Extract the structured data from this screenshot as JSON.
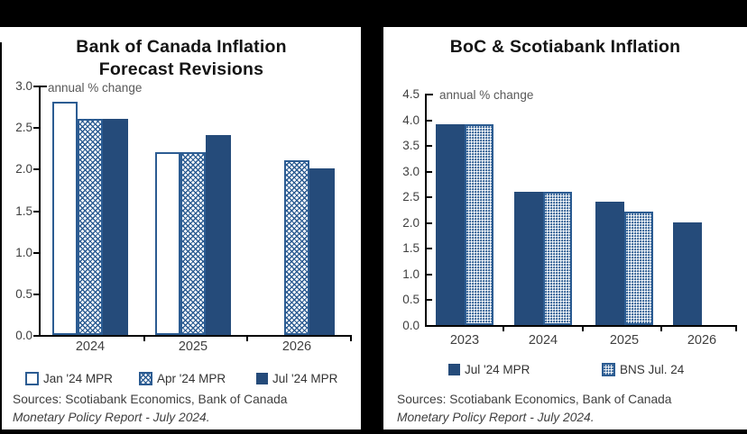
{
  "colors": {
    "bar_solid": "#254B7A",
    "bar_outline": "#2C5C92",
    "axis": "#000000",
    "tick_label": "#404040",
    "note_text": "#595959",
    "source_text": "#3F3F3F",
    "frame_background": "#000000",
    "panel_background": "#FFFFFF"
  },
  "chart_data": [
    {
      "type": "bar",
      "title": "Bank of Canada Inflation Forecast Revisions",
      "title_lines": [
        "Bank of Canada Inflation",
        "Forecast Revisions"
      ],
      "axis_note": "annual % change",
      "categories": [
        "2024",
        "2025",
        "2026"
      ],
      "series": [
        {
          "name": "Jan '24 MPR",
          "style": "outline",
          "values": [
            2.8,
            2.2,
            null
          ]
        },
        {
          "name": "Apr '24 MPR",
          "style": "crosshatch",
          "values": [
            2.6,
            2.2,
            2.1
          ]
        },
        {
          "name": "Jul '24 MPR",
          "style": "solid",
          "values": [
            2.6,
            2.4,
            2.0
          ]
        }
      ],
      "ylim": [
        0,
        3.0
      ],
      "y_ticks": [
        "3.0",
        "2.5",
        "2.0",
        "1.5",
        "1.0",
        "0.5",
        "0.0"
      ],
      "grid": false,
      "legend_position": "bottom",
      "source_lines": [
        "Sources: Scotiabank Economics, Bank of Canada",
        "Monetary Policy Report - July 2024."
      ]
    },
    {
      "type": "bar",
      "title": "BoC & Scotiabank Inflation",
      "title_lines": [
        "BoC & Scotiabank Inflation"
      ],
      "axis_note": "annual % change",
      "categories": [
        "2023",
        "2024",
        "2025",
        "2026"
      ],
      "series": [
        {
          "name": "Jul '24 MPR",
          "style": "solid",
          "values": [
            3.9,
            2.6,
            2.4,
            2.0
          ]
        },
        {
          "name": "BNS Jul. 24",
          "style": "dotted",
          "values": [
            3.9,
            2.6,
            2.2,
            null
          ]
        }
      ],
      "ylim": [
        0,
        4.5
      ],
      "y_ticks": [
        "4.5",
        "4.0",
        "3.5",
        "3.0",
        "2.5",
        "2.0",
        "1.5",
        "1.0",
        "0.5",
        "0.0"
      ],
      "grid": false,
      "legend_position": "bottom",
      "source_lines": [
        "Sources: Scotiabank Economics, Bank of Canada",
        "Monetary Policy Report - July 2024."
      ]
    }
  ]
}
